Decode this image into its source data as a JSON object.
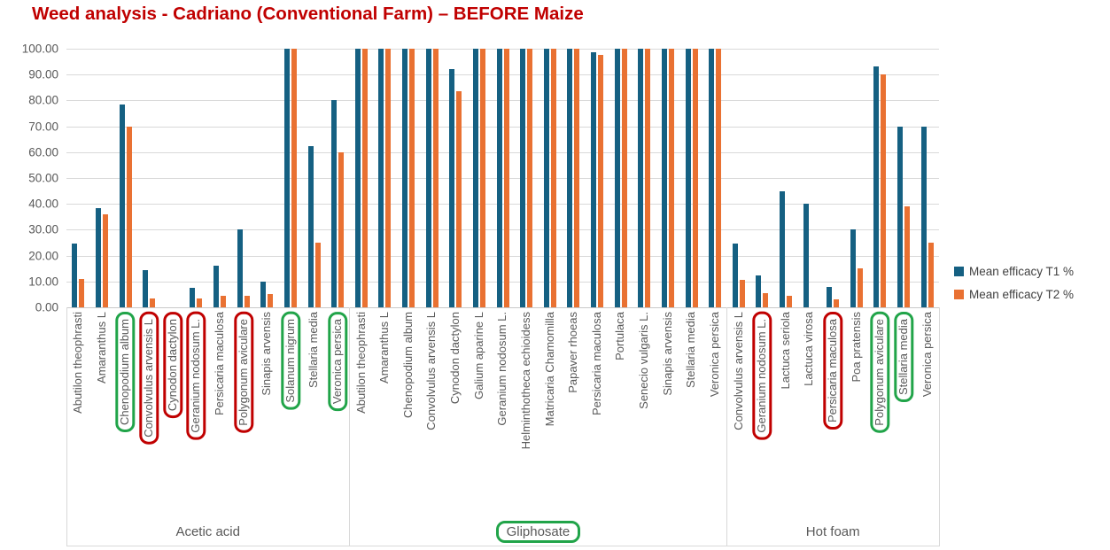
{
  "colors": {
    "series_t1": "#156082",
    "series_t2": "#E97132",
    "highlight_green": "#21A449",
    "highlight_red": "#C00000",
    "title": "#C00000",
    "grid": "#D9D9D9",
    "axis_text": "#595959",
    "legend_text": "#404040"
  },
  "chart_data": {
    "type": "bar",
    "title": "Weed analysis - Cadriano (Conventional Farm) – BEFORE Maize",
    "xlabel": "",
    "ylabel": "",
    "ylim": [
      0,
      100
    ],
    "ytick_step": 10,
    "ytick_labels": [
      "100.00",
      "90.00",
      "80.00",
      "70.00",
      "60.00",
      "50.00",
      "40.00",
      "30.00",
      "20.00",
      "10.00",
      "0.00"
    ],
    "grid": true,
    "legend_position": "right",
    "series": [
      {
        "name": "Mean efficacy T1 %",
        "color": "#156082"
      },
      {
        "name": "Mean efficacy T2 %",
        "color": "#E97132"
      }
    ],
    "groups": [
      {
        "label": "Acetic acid",
        "label_highlight": null,
        "species": [
          {
            "name": "Abutilon theophrasti",
            "t1": 24.5,
            "t2": 11,
            "highlight": null
          },
          {
            "name": "Amaranthus L",
            "t1": 38.5,
            "t2": 36,
            "highlight": null
          },
          {
            "name": "Chenopodium album",
            "t1": 78.5,
            "t2": 70,
            "highlight": "green"
          },
          {
            "name": "Convolvulus arvensis L",
            "t1": 14.5,
            "t2": 3.5,
            "highlight": "red"
          },
          {
            "name": "Cynodon dactylon",
            "t1": 0,
            "t2": 0,
            "highlight": "red"
          },
          {
            "name": "Geranium nodosum L.",
            "t1": 7.5,
            "t2": 3.5,
            "highlight": "red"
          },
          {
            "name": "Persicaria maculosa",
            "t1": 16,
            "t2": 4.5,
            "highlight": null
          },
          {
            "name": "Polygonum aviculare",
            "t1": 30,
            "t2": 4.5,
            "highlight": "red"
          },
          {
            "name": "Sinapis arvensis",
            "t1": 10,
            "t2": 5,
            "highlight": null
          },
          {
            "name": "Solanum nigrum",
            "t1": 100,
            "t2": 100,
            "highlight": "green"
          },
          {
            "name": "Stellaria media",
            "t1": 62.5,
            "t2": 25,
            "highlight": null
          },
          {
            "name": "Veronica persica",
            "t1": 80,
            "t2": 60,
            "highlight": "green"
          }
        ]
      },
      {
        "label": "Gliphosate",
        "label_highlight": "green",
        "species": [
          {
            "name": "Abutilon theophrasti",
            "t1": 100,
            "t2": 100,
            "highlight": null
          },
          {
            "name": "Amaranthus L",
            "t1": 100,
            "t2": 100,
            "highlight": null
          },
          {
            "name": "Chenopodium album",
            "t1": 100,
            "t2": 100,
            "highlight": null
          },
          {
            "name": "Convolvulus arvensis L",
            "t1": 100,
            "t2": 100,
            "highlight": null
          },
          {
            "name": "Cynodon dactylon",
            "t1": 92,
            "t2": 83.5,
            "highlight": null
          },
          {
            "name": "Galium aparine L",
            "t1": 100,
            "t2": 100,
            "highlight": null
          },
          {
            "name": "Geranium nodosum L.",
            "t1": 100,
            "t2": 100,
            "highlight": null
          },
          {
            "name": "Helminthotheca echioidess",
            "t1": 100,
            "t2": 100,
            "highlight": null
          },
          {
            "name": "Matricaria Chamomilla",
            "t1": 100,
            "t2": 100,
            "highlight": null
          },
          {
            "name": "Papaver rhoeas",
            "t1": 100,
            "t2": 100,
            "highlight": null
          },
          {
            "name": "Persicaria maculosa",
            "t1": 98.5,
            "t2": 97.5,
            "highlight": null
          },
          {
            "name": "Portulaca",
            "t1": 100,
            "t2": 100,
            "highlight": null
          },
          {
            "name": "Senecio vulgaris L.",
            "t1": 100,
            "t2": 100,
            "highlight": null
          },
          {
            "name": "Sinapis arvensis",
            "t1": 100,
            "t2": 100,
            "highlight": null
          },
          {
            "name": "Stellaria media",
            "t1": 100,
            "t2": 100,
            "highlight": null
          },
          {
            "name": "Veronica persica",
            "t1": 100,
            "t2": 100,
            "highlight": null
          }
        ]
      },
      {
        "label": "Hot foam",
        "label_highlight": null,
        "species": [
          {
            "name": "Convolvulus arvensis L",
            "t1": 24.5,
            "t2": 10.5,
            "highlight": null
          },
          {
            "name": "Geranium nodosum L.",
            "t1": 12.5,
            "t2": 5.5,
            "highlight": "red"
          },
          {
            "name": "Lactuca seriola",
            "t1": 45,
            "t2": 4.5,
            "highlight": null
          },
          {
            "name": "Lactuca virosa",
            "t1": 40,
            "t2": 0,
            "highlight": null
          },
          {
            "name": "Persicaria maculosa",
            "t1": 8,
            "t2": 3,
            "highlight": "red"
          },
          {
            "name": "Poa pratensis",
            "t1": 30,
            "t2": 15,
            "highlight": null
          },
          {
            "name": "Polygonum aviculare",
            "t1": 93,
            "t2": 90,
            "highlight": "green"
          },
          {
            "name": "Stellaria media",
            "t1": 70,
            "t2": 39,
            "highlight": "green"
          },
          {
            "name": "Veronica persica",
            "t1": 70,
            "t2": 25,
            "highlight": null
          }
        ]
      }
    ]
  }
}
